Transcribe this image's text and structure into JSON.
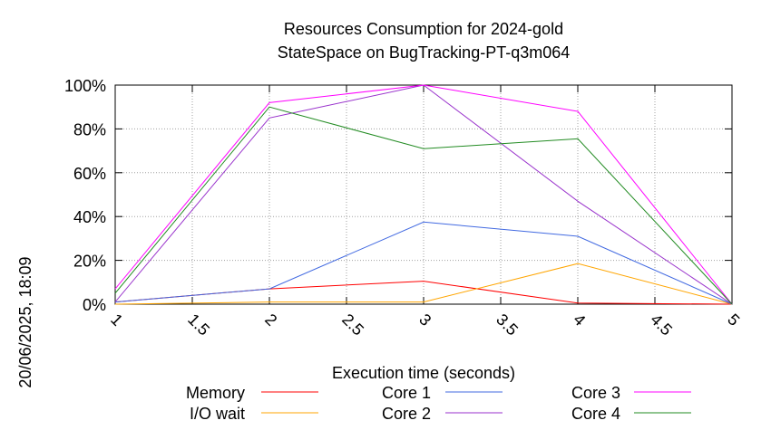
{
  "chart_data": {
    "type": "line",
    "title": "Resources Consumption for 2024-gold",
    "subtitle": "StateSpace on BugTracking-PT-q3m064",
    "xlabel": "Execution time (seconds)",
    "ylabel": "",
    "side_label": "20/06/2025, 18:09",
    "xlim": [
      1,
      5
    ],
    "ylim": [
      0,
      100
    ],
    "x_ticks": [
      "1",
      "1.5",
      "2",
      "2.5",
      "3",
      "3.5",
      "4",
      "4.5",
      "5"
    ],
    "y_ticks": [
      "0%",
      "20%",
      "40%",
      "60%",
      "80%",
      "100%"
    ],
    "grid": true,
    "legend_position": "bottom",
    "x": [
      1,
      2,
      3,
      4,
      5
    ],
    "series": [
      {
        "name": "Memory",
        "color": "#ff0000",
        "values": [
          1,
          7,
          10.5,
          0.5,
          0
        ]
      },
      {
        "name": "I/O wait",
        "color": "#ffa500",
        "values": [
          0,
          1,
          1,
          18.5,
          0
        ]
      },
      {
        "name": "Core 1",
        "color": "#4169e1",
        "values": [
          1,
          7,
          37.5,
          31,
          0
        ]
      },
      {
        "name": "Core 2",
        "color": "#9932cc",
        "values": [
          1,
          85,
          100,
          47,
          0
        ]
      },
      {
        "name": "Core 3",
        "color": "#ff00ff",
        "values": [
          7,
          92,
          100,
          88,
          0
        ]
      },
      {
        "name": "Core 4",
        "color": "#228b22",
        "values": [
          5,
          90,
          71,
          75.5,
          0
        ]
      }
    ]
  }
}
